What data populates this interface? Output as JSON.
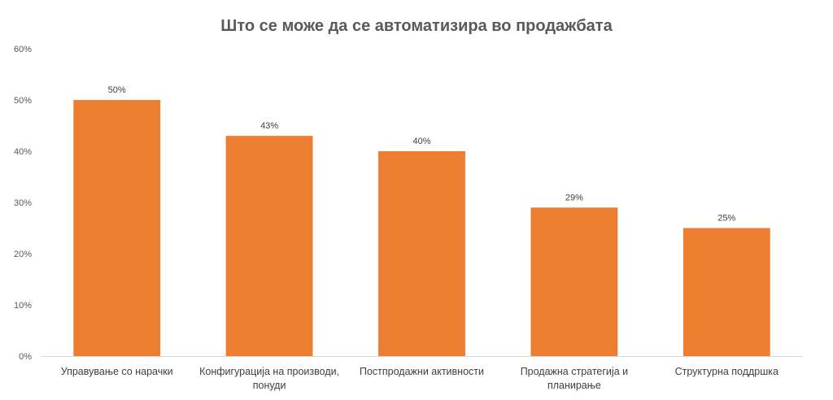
{
  "chart_data": {
    "type": "bar",
    "title": "Што се може да се автоматизира во продажбата",
    "categories": [
      [
        "Управување со нарачки"
      ],
      [
        "Конфигурација на производи,",
        "понуди"
      ],
      [
        "Постпродажни активности"
      ],
      [
        "Продажна стратегија и",
        "планирање"
      ],
      [
        "Структурна поддршка"
      ]
    ],
    "values": [
      50,
      43,
      40,
      29,
      25
    ],
    "data_labels": [
      "50%",
      "43%",
      "40%",
      "29%",
      "25%"
    ],
    "ylim": [
      0,
      60
    ],
    "y_ticks": [
      0,
      10,
      20,
      30,
      40,
      50,
      60
    ],
    "y_tick_labels": [
      "0%",
      "10%",
      "20%",
      "30%",
      "40%",
      "50%",
      "60%"
    ],
    "xlabel": "",
    "ylabel": "",
    "grid": false,
    "legend": "none",
    "colors": {
      "bar": "#ED7D31",
      "axis": "#D9D9D9",
      "text": "#595959"
    }
  }
}
